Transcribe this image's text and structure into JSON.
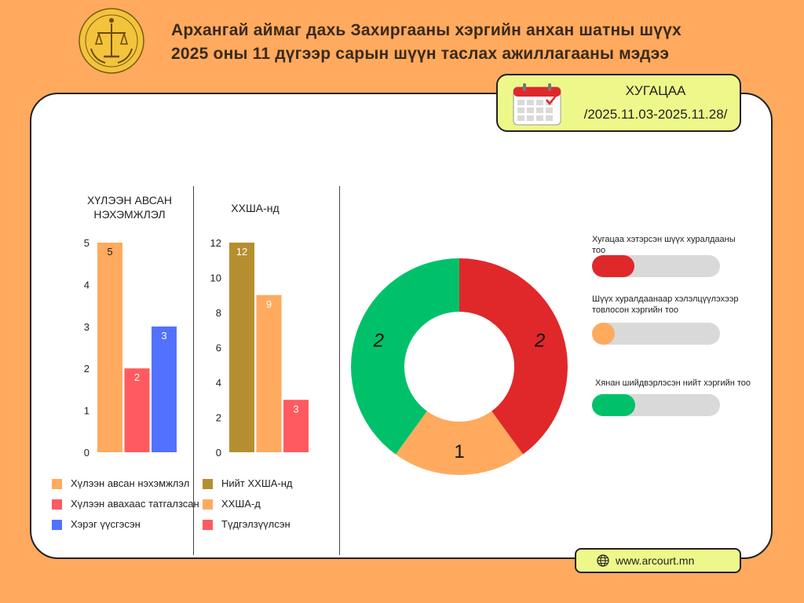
{
  "header": {
    "line1": "Архангай аймаг дахь Захиргааны хэргийн анхан шатны шүүх",
    "line2": "2025 оны 11 дүгээр сарын шүүн таслах ажиллагааны мэдээ"
  },
  "period": {
    "label": "ХУГАЦАА",
    "range": "/2025.11.03-2025.11.28/"
  },
  "website": "www.arcourt.mn",
  "colors": {
    "background": "#FFAA5E",
    "accent_box": "#EEF88A",
    "orange": "#FFAA5E",
    "red": "#FF5A5F",
    "blue": "#5271FF",
    "olive": "#B58F2F",
    "green": "#00C16A",
    "dark_red": "#E0282B"
  },
  "icons": [
    "court-emblem-icon",
    "calendar-icon",
    "globe-icon"
  ],
  "chart_data": [
    {
      "type": "bar",
      "title": "ХҮЛЭЭН АВСАН НЭХЭМЖЛЭЛ",
      "title_lines": [
        "ХҮЛЭЭН АВСАН",
        "НЭХЭМЖЛЭЛ"
      ],
      "categories": [
        "Хүлээн авсан нэхэмжлэл",
        "Хүлээн авахаас татгалзсан",
        "Хэрэг үүсгэсэн"
      ],
      "values": [
        5,
        2,
        3
      ],
      "colors": [
        "#FFAA5E",
        "#FF5A5F",
        "#5271FF"
      ],
      "ylim": [
        0,
        5
      ],
      "yticks": [
        0,
        1,
        2,
        3,
        4,
        5
      ],
      "grid": false,
      "legend": "bottom"
    },
    {
      "type": "bar",
      "title": "ХХША-нд",
      "categories": [
        "Нийт ХХША-нд",
        "ХХША-д",
        "Түдгэлзүүлсэн"
      ],
      "values": [
        12,
        9,
        3
      ],
      "colors": [
        "#B58F2F",
        "#FFAA5E",
        "#FF5A5F"
      ],
      "ylim": [
        0,
        12
      ],
      "yticks": [
        0,
        2,
        4,
        6,
        8,
        10,
        12
      ],
      "grid": false,
      "legend": "bottom"
    },
    {
      "type": "pie",
      "donut": true,
      "values": [
        2,
        1,
        2
      ],
      "colors": [
        "#E0282B",
        "#FFAA5E",
        "#00C16A"
      ],
      "labels": [
        "2",
        "1",
        "2"
      ]
    },
    {
      "type": "bar",
      "orientation": "horizontal",
      "items": [
        {
          "label": "Хугацаа хэтэрсэн шүүх хуралдааны тоо",
          "color": "#E0282B",
          "fraction": 0.33
        },
        {
          "label": "Шүүх хуралдаанаар хэлэлцүүлэхээр товлосон хэргийн тоо",
          "color": "#FFAA5E",
          "fraction": 0.18
        },
        {
          "label": "Хянан шийдвэрлэсэн нийт хэргийн тоо",
          "color": "#00C16A",
          "fraction": 0.34
        }
      ]
    }
  ]
}
